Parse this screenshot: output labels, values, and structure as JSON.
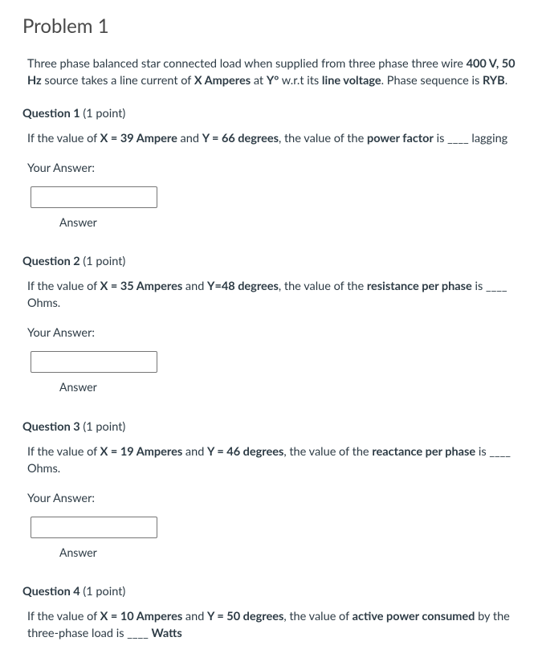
{
  "problem": {
    "title": "Problem 1",
    "stem_parts": {
      "p1": "Three phase balanced star connected load when supplied from three phase three wire ",
      "b1": "400 V, 50 Hz",
      "p2": " source takes a line current of ",
      "b2": "X Amperes",
      "p3": " at ",
      "b3": "Y°",
      "p4": " w.r.t its ",
      "b4": "line voltage",
      "p5": ". Phase sequence is ",
      "b5": "RYB",
      "p6": "."
    }
  },
  "common": {
    "your_answer": "Your Answer:",
    "answer_label": "Answer"
  },
  "q1": {
    "title": "Question 1",
    "points": " (1 point)",
    "t1": "If the value of ",
    "b1": "X = 39 Ampere",
    "t2": " and ",
    "b2": "Y = 66 degrees",
    "t3": ", the value of the ",
    "b3": "power factor",
    "t4": " is ____ lagging"
  },
  "q2": {
    "title": "Question 2",
    "points": " (1 point)",
    "t1": "If the value of ",
    "b1": "X = 35 Amperes",
    "t2": " and ",
    "b2": "Y=48 degrees",
    "t3": ", the value of the ",
    "b3": "resistance per phase",
    "t4": " is ____ Ohms."
  },
  "q3": {
    "title": "Question 3",
    "points": " (1 point)",
    "t1": "If the value of ",
    "b1": "X = 19 Amperes",
    "t2": " and ",
    "b2": "Y = 46 degrees",
    "t3": ", the value of the ",
    "b3": "reactance per phase",
    "t4": " is ____ Ohms."
  },
  "q4": {
    "title": "Question 4",
    "points": " (1 point)",
    "t1": "If the value of ",
    "b1": "X = 10 Amperes",
    "t2": " and ",
    "b2": "Y = 50 degrees",
    "t3": ", the value of ",
    "b3": "active power consumed",
    "t4": " by the three-phase load is ____ ",
    "b4": "Watts"
  }
}
